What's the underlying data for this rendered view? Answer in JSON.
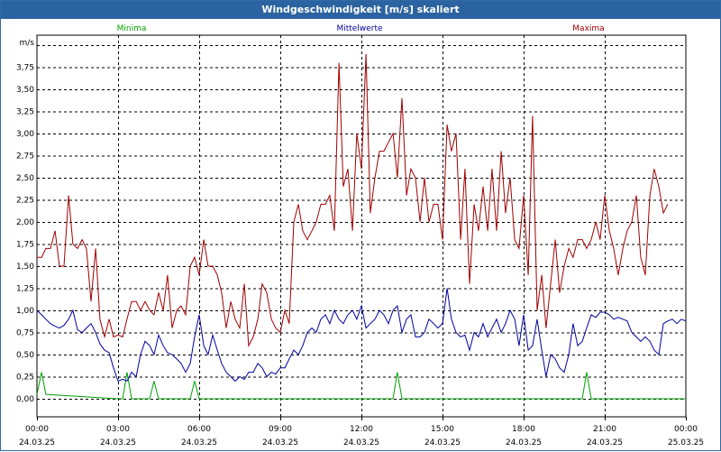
{
  "window": {
    "title": "Windgeschwindigkeit [m/s] skaliert"
  },
  "colors": {
    "minima": "#00a000",
    "mittel": "#0000a0",
    "maxima": "#a00000",
    "grid": "#000000",
    "title_bg": "#2b63a0"
  },
  "chart_data": {
    "type": "line",
    "title": "Windgeschwindigkeit [m/s] skaliert",
    "ylabel": "m/s",
    "xlabel": "",
    "ylim": [
      0,
      4.0
    ],
    "yticks": [
      "0,00",
      "0,25",
      "0,50",
      "0,75",
      "1,00",
      "1,25",
      "1,50",
      "1,75",
      "2,00",
      "2,25",
      "2,50",
      "2,75",
      "3,00",
      "3,25",
      "3,50",
      "3,75"
    ],
    "xlim": [
      0,
      24
    ],
    "xticks": [
      {
        "time": "00:00",
        "date": "24.03.25"
      },
      {
        "time": "03:00",
        "date": "24.03.25"
      },
      {
        "time": "06:00",
        "date": "24.03.25"
      },
      {
        "time": "09:00",
        "date": "24.03.25"
      },
      {
        "time": "12:00",
        "date": "24.03.25"
      },
      {
        "time": "15:00",
        "date": "24.03.25"
      },
      {
        "time": "18:00",
        "date": "24.03.25"
      },
      {
        "time": "21:00",
        "date": "24.03.25"
      },
      {
        "time": "00:00",
        "date": "25.03.25"
      }
    ],
    "grid": true,
    "legend_position": "top",
    "series": [
      {
        "name": "Minima",
        "color_key": "minima",
        "points": [
          [
            0,
            0.05
          ],
          [
            0.17,
            0.3
          ],
          [
            0.33,
            0.05
          ],
          [
            3,
            0
          ],
          [
            3.17,
            0
          ],
          [
            3.33,
            0.3
          ],
          [
            3.5,
            0
          ],
          [
            4,
            0
          ],
          [
            4.17,
            0
          ],
          [
            4.33,
            0.2
          ],
          [
            4.5,
            0
          ],
          [
            5.67,
            0
          ],
          [
            5.83,
            0.2
          ],
          [
            6,
            0
          ],
          [
            13.17,
            0
          ],
          [
            13.33,
            0.3
          ],
          [
            13.5,
            0
          ],
          [
            20.17,
            0
          ],
          [
            20.33,
            0.3
          ],
          [
            20.5,
            0
          ],
          [
            24,
            0
          ]
        ]
      },
      {
        "name": "Mittelwerte",
        "color_key": "mittel",
        "points": [
          [
            0,
            1.0
          ],
          [
            0.17,
            0.95
          ],
          [
            0.33,
            0.9
          ],
          [
            0.5,
            0.85
          ],
          [
            0.67,
            0.82
          ],
          [
            0.83,
            0.8
          ],
          [
            1.0,
            0.83
          ],
          [
            1.17,
            0.9
          ],
          [
            1.33,
            1.0
          ],
          [
            1.5,
            0.78
          ],
          [
            1.67,
            0.75
          ],
          [
            1.83,
            0.8
          ],
          [
            2.0,
            0.85
          ],
          [
            2.17,
            0.75
          ],
          [
            2.33,
            0.62
          ],
          [
            2.5,
            0.55
          ],
          [
            2.67,
            0.52
          ],
          [
            2.83,
            0.35
          ],
          [
            3.0,
            0.2
          ],
          [
            3.17,
            0.22
          ],
          [
            3.33,
            0.2
          ],
          [
            3.5,
            0.3
          ],
          [
            3.67,
            0.25
          ],
          [
            3.83,
            0.5
          ],
          [
            4.0,
            0.65
          ],
          [
            4.17,
            0.6
          ],
          [
            4.33,
            0.5
          ],
          [
            4.5,
            0.72
          ],
          [
            4.67,
            0.6
          ],
          [
            4.83,
            0.52
          ],
          [
            5.0,
            0.5
          ],
          [
            5.17,
            0.45
          ],
          [
            5.33,
            0.4
          ],
          [
            5.5,
            0.3
          ],
          [
            5.67,
            0.4
          ],
          [
            5.83,
            0.7
          ],
          [
            6.0,
            0.95
          ],
          [
            6.17,
            0.6
          ],
          [
            6.33,
            0.5
          ],
          [
            6.5,
            0.72
          ],
          [
            6.67,
            0.55
          ],
          [
            6.83,
            0.4
          ],
          [
            7.0,
            0.3
          ],
          [
            7.17,
            0.25
          ],
          [
            7.33,
            0.2
          ],
          [
            7.5,
            0.25
          ],
          [
            7.67,
            0.22
          ],
          [
            7.83,
            0.3
          ],
          [
            8.0,
            0.3
          ],
          [
            8.17,
            0.4
          ],
          [
            8.33,
            0.35
          ],
          [
            8.5,
            0.25
          ],
          [
            8.67,
            0.3
          ],
          [
            8.83,
            0.28
          ],
          [
            9.0,
            0.35
          ],
          [
            9.17,
            0.35
          ],
          [
            9.33,
            0.45
          ],
          [
            9.5,
            0.55
          ],
          [
            9.67,
            0.5
          ],
          [
            9.83,
            0.6
          ],
          [
            10.0,
            0.75
          ],
          [
            10.17,
            0.8
          ],
          [
            10.33,
            0.75
          ],
          [
            10.5,
            0.9
          ],
          [
            10.67,
            0.95
          ],
          [
            10.83,
            0.85
          ],
          [
            11.0,
            1.0
          ],
          [
            11.17,
            0.9
          ],
          [
            11.33,
            0.85
          ],
          [
            11.5,
            0.95
          ],
          [
            11.67,
            1.0
          ],
          [
            11.83,
            0.9
          ],
          [
            12.0,
            1.05
          ],
          [
            12.17,
            0.8
          ],
          [
            12.33,
            0.85
          ],
          [
            12.5,
            0.9
          ],
          [
            12.67,
            1.0
          ],
          [
            12.83,
            0.95
          ],
          [
            13.0,
            0.85
          ],
          [
            13.17,
            1.0
          ],
          [
            13.33,
            1.05
          ],
          [
            13.5,
            0.75
          ],
          [
            13.67,
            0.9
          ],
          [
            13.83,
            0.95
          ],
          [
            14.0,
            0.7
          ],
          [
            14.17,
            0.7
          ],
          [
            14.33,
            0.75
          ],
          [
            14.5,
            0.9
          ],
          [
            14.67,
            0.85
          ],
          [
            14.83,
            0.8
          ],
          [
            15.0,
            0.85
          ],
          [
            15.17,
            1.25
          ],
          [
            15.33,
            0.9
          ],
          [
            15.5,
            0.75
          ],
          [
            15.67,
            0.7
          ],
          [
            15.83,
            0.72
          ],
          [
            16.0,
            0.55
          ],
          [
            16.17,
            0.75
          ],
          [
            16.33,
            0.7
          ],
          [
            16.5,
            0.85
          ],
          [
            16.67,
            0.7
          ],
          [
            16.83,
            0.8
          ],
          [
            17.0,
            0.9
          ],
          [
            17.17,
            0.75
          ],
          [
            17.33,
            0.85
          ],
          [
            17.5,
            1.0
          ],
          [
            17.67,
            0.9
          ],
          [
            17.83,
            0.6
          ],
          [
            18.0,
            0.95
          ],
          [
            18.17,
            0.55
          ],
          [
            18.33,
            0.6
          ],
          [
            18.5,
            0.9
          ],
          [
            18.67,
            0.55
          ],
          [
            18.83,
            0.25
          ],
          [
            19.0,
            0.5
          ],
          [
            19.17,
            0.45
          ],
          [
            19.33,
            0.35
          ],
          [
            19.5,
            0.3
          ],
          [
            19.67,
            0.5
          ],
          [
            19.83,
            0.85
          ],
          [
            20.0,
            0.6
          ],
          [
            20.17,
            0.65
          ],
          [
            20.33,
            0.8
          ],
          [
            20.5,
            0.95
          ],
          [
            20.67,
            0.92
          ],
          [
            20.83,
            0.98
          ],
          [
            21.0,
            0.98
          ],
          [
            21.17,
            0.95
          ],
          [
            21.33,
            0.9
          ],
          [
            21.5,
            0.92
          ],
          [
            21.67,
            0.9
          ],
          [
            21.83,
            0.88
          ],
          [
            22.0,
            0.75
          ],
          [
            22.17,
            0.7
          ],
          [
            22.33,
            0.65
          ],
          [
            22.5,
            0.7
          ],
          [
            22.67,
            0.65
          ],
          [
            22.83,
            0.55
          ],
          [
            23.0,
            0.5
          ],
          [
            23.17,
            0.85
          ],
          [
            23.33,
            0.88
          ],
          [
            23.5,
            0.9
          ],
          [
            23.67,
            0.85
          ],
          [
            23.83,
            0.9
          ],
          [
            24.0,
            0.88
          ]
        ]
      },
      {
        "name": "Maxima",
        "color_key": "maxima",
        "points": [
          [
            0,
            1.6
          ],
          [
            0.17,
            1.6
          ],
          [
            0.33,
            1.7
          ],
          [
            0.5,
            1.7
          ],
          [
            0.67,
            1.9
          ],
          [
            0.83,
            1.5
          ],
          [
            1.0,
            1.5
          ],
          [
            1.17,
            2.3
          ],
          [
            1.33,
            1.75
          ],
          [
            1.5,
            1.7
          ],
          [
            1.67,
            1.8
          ],
          [
            1.83,
            1.7
          ],
          [
            2.0,
            1.1
          ],
          [
            2.17,
            1.7
          ],
          [
            2.33,
            0.9
          ],
          [
            2.5,
            0.7
          ],
          [
            2.67,
            0.9
          ],
          [
            2.83,
            0.7
          ],
          [
            3.0,
            0.72
          ],
          [
            3.17,
            0.7
          ],
          [
            3.33,
            0.9
          ],
          [
            3.5,
            1.1
          ],
          [
            3.67,
            1.1
          ],
          [
            3.83,
            1.0
          ],
          [
            4.0,
            1.1
          ],
          [
            4.17,
            1.0
          ],
          [
            4.33,
            0.95
          ],
          [
            4.5,
            1.2
          ],
          [
            4.67,
            1.0
          ],
          [
            4.83,
            1.4
          ],
          [
            5.0,
            0.8
          ],
          [
            5.17,
            1.0
          ],
          [
            5.33,
            1.05
          ],
          [
            5.5,
            0.95
          ],
          [
            5.67,
            1.5
          ],
          [
            5.83,
            1.6
          ],
          [
            6.0,
            1.4
          ],
          [
            6.17,
            1.8
          ],
          [
            6.33,
            1.5
          ],
          [
            6.5,
            1.5
          ],
          [
            6.67,
            1.4
          ],
          [
            6.83,
            1.2
          ],
          [
            7.0,
            0.8
          ],
          [
            7.17,
            1.1
          ],
          [
            7.33,
            0.9
          ],
          [
            7.5,
            0.8
          ],
          [
            7.67,
            1.3
          ],
          [
            7.83,
            0.6
          ],
          [
            8.0,
            0.7
          ],
          [
            8.17,
            0.9
          ],
          [
            8.33,
            1.3
          ],
          [
            8.5,
            1.2
          ],
          [
            8.67,
            0.9
          ],
          [
            8.83,
            0.8
          ],
          [
            9.0,
            0.75
          ],
          [
            9.17,
            1.0
          ],
          [
            9.33,
            0.85
          ],
          [
            9.5,
            2.0
          ],
          [
            9.67,
            2.2
          ],
          [
            9.83,
            1.9
          ],
          [
            10.0,
            1.8
          ],
          [
            10.17,
            1.9
          ],
          [
            10.33,
            2.0
          ],
          [
            10.5,
            2.2
          ],
          [
            10.67,
            2.2
          ],
          [
            10.83,
            2.3
          ],
          [
            11.0,
            1.9
          ],
          [
            11.17,
            3.8
          ],
          [
            11.33,
            2.4
          ],
          [
            11.5,
            2.6
          ],
          [
            11.67,
            1.9
          ],
          [
            11.83,
            3.0
          ],
          [
            12.0,
            2.6
          ],
          [
            12.17,
            3.9
          ],
          [
            12.33,
            2.1
          ],
          [
            12.5,
            2.5
          ],
          [
            12.67,
            2.8
          ],
          [
            12.83,
            2.8
          ],
          [
            13.0,
            2.9
          ],
          [
            13.17,
            3.0
          ],
          [
            13.33,
            2.5
          ],
          [
            13.5,
            3.4
          ],
          [
            13.67,
            2.3
          ],
          [
            13.83,
            2.6
          ],
          [
            14.0,
            2.5
          ],
          [
            14.17,
            2.0
          ],
          [
            14.33,
            2.5
          ],
          [
            14.5,
            2.0
          ],
          [
            14.67,
            2.2
          ],
          [
            14.83,
            2.2
          ],
          [
            15.0,
            1.8
          ],
          [
            15.17,
            3.1
          ],
          [
            15.33,
            2.8
          ],
          [
            15.5,
            3.0
          ],
          [
            15.67,
            1.8
          ],
          [
            15.83,
            2.6
          ],
          [
            16.0,
            1.3
          ],
          [
            16.17,
            2.2
          ],
          [
            16.33,
            1.9
          ],
          [
            16.5,
            2.4
          ],
          [
            16.67,
            1.9
          ],
          [
            16.83,
            2.6
          ],
          [
            17.0,
            1.9
          ],
          [
            17.17,
            2.8
          ],
          [
            17.33,
            2.1
          ],
          [
            17.5,
            2.5
          ],
          [
            17.67,
            1.8
          ],
          [
            17.83,
            1.7
          ],
          [
            18.0,
            2.3
          ],
          [
            18.17,
            1.4
          ],
          [
            18.33,
            3.2
          ],
          [
            18.5,
            1.0
          ],
          [
            18.67,
            1.4
          ],
          [
            18.83,
            0.8
          ],
          [
            19.0,
            1.3
          ],
          [
            19.17,
            1.8
          ],
          [
            19.33,
            1.2
          ],
          [
            19.5,
            1.5
          ],
          [
            19.67,
            1.7
          ],
          [
            19.83,
            1.6
          ],
          [
            20.0,
            1.8
          ],
          [
            20.17,
            1.8
          ],
          [
            20.33,
            1.7
          ],
          [
            20.5,
            1.8
          ],
          [
            20.67,
            2.0
          ],
          [
            20.83,
            1.8
          ],
          [
            21.0,
            2.3
          ],
          [
            21.17,
            1.9
          ],
          [
            21.33,
            1.7
          ],
          [
            21.5,
            1.4
          ],
          [
            21.67,
            1.7
          ],
          [
            21.83,
            1.9
          ],
          [
            22.0,
            2.0
          ],
          [
            22.17,
            2.3
          ],
          [
            22.33,
            1.6
          ],
          [
            22.5,
            1.4
          ],
          [
            22.67,
            2.3
          ],
          [
            22.83,
            2.6
          ],
          [
            23.0,
            2.4
          ],
          [
            23.17,
            2.1
          ],
          [
            23.33,
            2.2
          ]
        ]
      }
    ]
  }
}
